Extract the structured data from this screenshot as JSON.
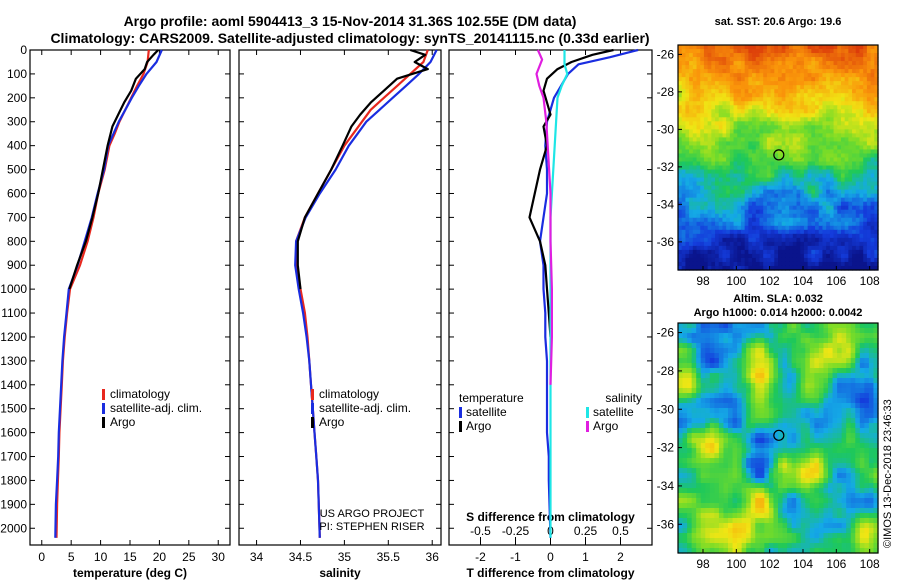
{
  "title": {
    "line1": "Argo profile: aoml 5904413_3 15-Nov-2014 31.36S 102.55E (DM data)",
    "line2": "Climatology: CARS2009. Satellite-adjusted climatology: synTS_20141115.nc (0.33d earlier)"
  },
  "credit": {
    "line1": "US ARGO PROJECT",
    "line2": "PI: STEPHEN RISER"
  },
  "imos_stamp": "©IMOS 13-Dec-2018 23:46:33",
  "colors": {
    "climatology": "#e8281e",
    "satellite": "#1a2de0",
    "argo": "#000000",
    "cyan": "#1ee6e6",
    "magenta": "#e01ee0"
  },
  "chart_data": [
    {
      "type": "line",
      "id": "temperature",
      "xlabel": "temperature (deg C)",
      "xlim": [
        -2,
        32
      ],
      "xticks": [
        0,
        5,
        10,
        15,
        20,
        25,
        30
      ],
      "ylim": [
        2070,
        0
      ],
      "yticks": [
        0,
        100,
        200,
        300,
        400,
        500,
        600,
        700,
        800,
        900,
        1000,
        1100,
        1200,
        1300,
        1400,
        1500,
        1600,
        1700,
        1800,
        1900,
        2000
      ],
      "legend": [
        "climatology",
        "satellite-adj. clim.",
        "Argo"
      ],
      "series": [
        {
          "name": "climatology",
          "color": "climatology",
          "x": [
            18.2,
            18,
            17.3,
            16.2,
            15.2,
            14.2,
            13.2,
            12.4,
            11.5,
            10.7,
            9.6,
            8.8,
            7.8,
            6.5,
            4.8,
            4.3,
            3.9,
            3.6,
            3.4,
            3.2,
            3.0,
            2.9,
            2.75,
            2.6,
            2.5
          ],
          "y": [
            0,
            50,
            100,
            150,
            200,
            250,
            300,
            350,
            400,
            500,
            600,
            700,
            800,
            900,
            1000,
            1100,
            1200,
            1300,
            1400,
            1500,
            1600,
            1700,
            1800,
            1900,
            2040
          ]
        },
        {
          "name": "satellite-adj. clim.",
          "color": "satellite",
          "x": [
            20.4,
            19.5,
            17.8,
            16.5,
            15.3,
            14.2,
            13.1,
            12.2,
            11.3,
            10.6,
            9.5,
            8.5,
            7.3,
            6.1,
            4.6,
            4.2,
            3.8,
            3.5,
            3.3,
            3.1,
            2.9,
            2.8,
            2.6,
            2.4,
            2.3
          ],
          "y": [
            0,
            50,
            100,
            150,
            200,
            250,
            300,
            350,
            400,
            500,
            600,
            700,
            800,
            900,
            1000,
            1100,
            1200,
            1300,
            1400,
            1500,
            1600,
            1700,
            1800,
            1900,
            2040
          ]
        },
        {
          "name": "Argo",
          "color": "argo",
          "x": [
            19.8,
            19,
            17.9,
            17.5,
            16.0,
            15.2,
            14.0,
            13.0,
            12.0,
            11.2,
            10.4,
            9.6,
            8.6,
            7.5,
            6.0,
            4.7
          ],
          "y": [
            0,
            20,
            50,
            80,
            120,
            170,
            220,
            270,
            320,
            400,
            500,
            600,
            700,
            800,
            900,
            1000
          ]
        }
      ]
    },
    {
      "type": "line",
      "id": "salinity",
      "xlabel": "salinity",
      "xlim": [
        33.8,
        36.1
      ],
      "xticks": [
        34,
        34.5,
        35,
        35.5,
        36
      ],
      "ylim": [
        2070,
        0
      ],
      "legend": [
        "climatology",
        "satellite-adj. clim.",
        "Argo"
      ],
      "series": [
        {
          "name": "climatology",
          "color": "climatology",
          "x": [
            35.95,
            35.9,
            35.75,
            35.6,
            35.45,
            35.3,
            35.2,
            35.1,
            35.0,
            34.85,
            34.7,
            34.55,
            34.45,
            34.45,
            34.5,
            34.55,
            34.58,
            34.6,
            34.62,
            34.64,
            34.66,
            34.68,
            34.7,
            34.72
          ],
          "y": [
            0,
            50,
            100,
            150,
            200,
            250,
            300,
            350,
            400,
            500,
            600,
            700,
            800,
            900,
            1000,
            1100,
            1200,
            1300,
            1400,
            1500,
            1600,
            1700,
            1800,
            2040
          ]
        },
        {
          "name": "satellite-adj. clim.",
          "color": "satellite",
          "x": [
            36.05,
            35.98,
            35.85,
            35.7,
            35.55,
            35.4,
            35.25,
            35.15,
            35.05,
            34.9,
            34.72,
            34.56,
            34.45,
            34.44,
            34.48,
            34.53,
            34.57,
            34.6,
            34.62,
            34.64,
            34.66,
            34.68,
            34.7,
            34.72
          ],
          "y": [
            0,
            50,
            100,
            150,
            200,
            250,
            300,
            350,
            400,
            500,
            600,
            700,
            800,
            900,
            1000,
            1100,
            1200,
            1300,
            1400,
            1500,
            1600,
            1700,
            1800,
            2040
          ]
        },
        {
          "name": "Argo",
          "color": "argo",
          "x": [
            35.75,
            35.92,
            35.8,
            35.95,
            35.6,
            35.45,
            35.3,
            35.18,
            35.08,
            34.98,
            34.85,
            34.7,
            34.55,
            34.47,
            34.47,
            34.5
          ],
          "y": [
            0,
            20,
            50,
            80,
            120,
            170,
            220,
            270,
            320,
            400,
            500,
            600,
            700,
            800,
            900,
            1000
          ]
        }
      ]
    },
    {
      "type": "line",
      "id": "difference",
      "xlabel": "T difference from climatology",
      "xlim": [
        -2.9,
        2.9
      ],
      "xticks": [
        -2,
        -1,
        0,
        1,
        2
      ],
      "x2label": "S difference from climatology",
      "x2lim": [
        -0.725,
        0.725
      ],
      "x2ticks": [
        -0.5,
        -0.25,
        0,
        0.25,
        0.5
      ],
      "ylim": [
        2070,
        0
      ],
      "legend_temperature": {
        "title": "temperature",
        "items": [
          "satellite",
          "Argo"
        ]
      },
      "legend_salinity": {
        "title": "salinity",
        "items": [
          "satellite",
          "Argo"
        ]
      },
      "series": [
        {
          "name": "temperature satellite",
          "color": "satellite",
          "x": [
            2.5,
            1.7,
            0.8,
            0.5,
            0.3,
            0.1,
            0.0,
            -0.1,
            -0.15,
            -0.1,
            -0.1,
            -0.2,
            -0.3,
            -0.2,
            -0.2,
            -0.15,
            -0.15,
            -0.1,
            -0.1,
            -0.1,
            -0.1,
            -0.05,
            -0.05,
            0.0
          ],
          "y": [
            0,
            30,
            60,
            100,
            150,
            200,
            250,
            300,
            400,
            500,
            600,
            700,
            800,
            900,
            1000,
            1100,
            1200,
            1300,
            1400,
            1500,
            1600,
            1700,
            1800,
            2040
          ]
        },
        {
          "name": "temperature Argo",
          "color": "argo",
          "x": [
            1.8,
            1.2,
            0.6,
            0.2,
            -0.1,
            -0.2,
            -0.1,
            0.0,
            -0.2,
            -0.1,
            -0.3,
            -0.6,
            -0.3,
            -0.15,
            -0.1,
            -0.05,
            0.0
          ],
          "y": [
            0,
            20,
            50,
            80,
            120,
            170,
            220,
            270,
            320,
            400,
            500,
            700,
            800,
            900,
            1000,
            1100,
            1200
          ]
        },
        {
          "name": "salinity satellite",
          "color": "cyan",
          "x": [
            0.1,
            0.1,
            0.12,
            0.08,
            0.05,
            0.04,
            0.03,
            0.02,
            0.01,
            0.0,
            0.0,
            0.0,
            0.0,
            0.0,
            0.0,
            0.0
          ],
          "y": [
            0,
            60,
            100,
            150,
            200,
            300,
            400,
            500,
            600,
            700,
            900,
            1100,
            1300,
            1500,
            1800,
            2040
          ]
        },
        {
          "name": "salinity Argo",
          "color": "magenta",
          "x": [
            -0.09,
            -0.06,
            -0.1,
            -0.08,
            -0.05,
            -0.03,
            -0.02,
            -0.01,
            0.0,
            0.0,
            0.01,
            0.01,
            0.0
          ],
          "y": [
            0,
            40,
            100,
            150,
            200,
            300,
            400,
            500,
            600,
            800,
            1000,
            1200,
            1400
          ]
        }
      ]
    },
    {
      "type": "heatmap",
      "id": "sst_map",
      "title": "sat.  SST: 20.6 Argo: 19.6",
      "xticks": [
        98,
        100,
        102,
        104,
        106,
        108
      ],
      "yticks": [
        -26,
        -28,
        -30,
        -32,
        -34,
        -36
      ],
      "xlim": [
        96.5,
        108.5
      ],
      "ylim": [
        -37.5,
        -25.5
      ],
      "marker": {
        "lon": 102.55,
        "lat": -31.36
      }
    },
    {
      "type": "heatmap",
      "id": "sla_map",
      "title": "Altim. SLA: 0.032",
      "subtitle": "Argo h1000: 0.014 h2000: 0.0042",
      "xticks": [
        98,
        100,
        102,
        104,
        106,
        108
      ],
      "yticks": [
        -26,
        -28,
        -30,
        -32,
        -34,
        -36
      ],
      "xlim": [
        96.5,
        108.5
      ],
      "ylim": [
        -37.5,
        -25.5
      ],
      "marker": {
        "lon": 102.55,
        "lat": -31.36
      }
    }
  ]
}
